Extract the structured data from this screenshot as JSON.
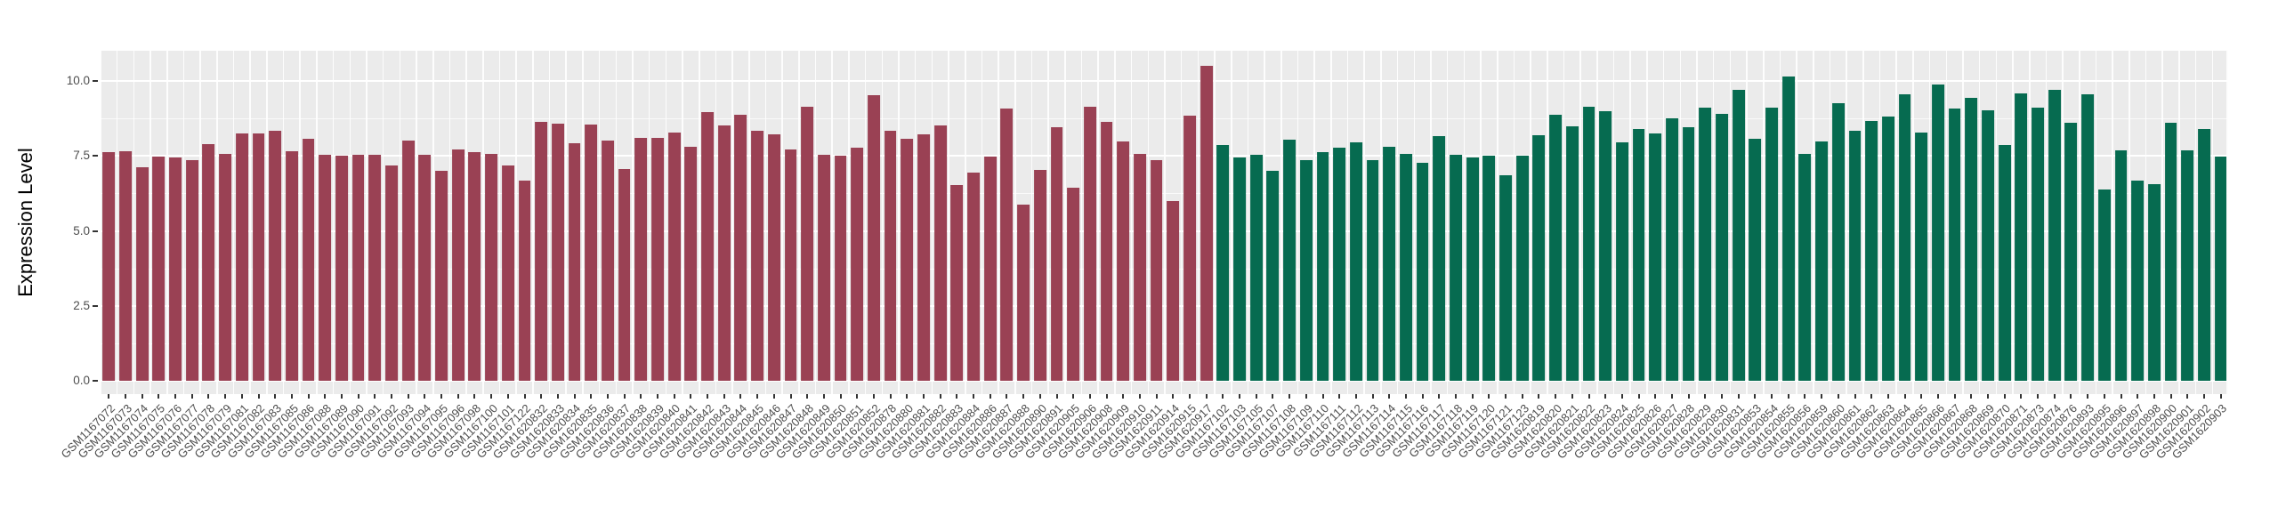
{
  "figure": {
    "background": "#FFFFFF",
    "panel_background": "#EBEBEB",
    "grid_color": "#FFFFFF",
    "axis_text_color": "#4D4D4D",
    "tick_mark_color": "#333333"
  },
  "chart_data": {
    "type": "bar",
    "title": "",
    "xlabel": "",
    "ylabel": "Expression Level",
    "ylim": [
      -0.45,
      11.0
    ],
    "y_ticks": [
      0.0,
      2.5,
      5.0,
      7.5,
      10.0
    ],
    "y_tick_labels": [
      "0.0",
      "2.5",
      "5.0",
      "7.5",
      "10.0"
    ],
    "x_tick_angle": 45,
    "grid": "white major and minor horizontal lines, white vertical lines between bars",
    "legend": "none",
    "groups": [
      {
        "name": "red-group",
        "color": "#9A4154",
        "labels": [
          "GSM1167072",
          "GSM1167073",
          "GSM1167074",
          "GSM1167075",
          "GSM1167076",
          "GSM1167077",
          "GSM1167078",
          "GSM1167079",
          "GSM1167081",
          "GSM1167082",
          "GSM1167083",
          "GSM1167085",
          "GSM1167086",
          "GSM1167088",
          "GSM1167089",
          "GSM1167090",
          "GSM1167091",
          "GSM1167092",
          "GSM1167093",
          "GSM1167094",
          "GSM1167095",
          "GSM1167096",
          "GSM1167098",
          "GSM1167100",
          "GSM1167101",
          "GSM1167122",
          "GSM1620832",
          "GSM1620833",
          "GSM1620834",
          "GSM1620835",
          "GSM1620836",
          "GSM1620837",
          "GSM1620838",
          "GSM1620839",
          "GSM1620840",
          "GSM1620841",
          "GSM1620842",
          "GSM1620843",
          "GSM1620844",
          "GSM1620845",
          "GSM1620846",
          "GSM1620847",
          "GSM1620848",
          "GSM1620849",
          "GSM1620850",
          "GSM1620851",
          "GSM1620852",
          "GSM1620878",
          "GSM1620880",
          "GSM1620881",
          "GSM1620882",
          "GSM1620883",
          "GSM1620884",
          "GSM1620886",
          "GSM1620887",
          "GSM1620888",
          "GSM1620890",
          "GSM1620891",
          "GSM1620905",
          "GSM1620906",
          "GSM1620908",
          "GSM1620909",
          "GSM1620910",
          "GSM1620911",
          "GSM1620914",
          "GSM1620915",
          "GSM1620917"
        ],
        "values": [
          7.61,
          7.66,
          7.13,
          7.47,
          7.45,
          7.35,
          7.88,
          7.58,
          8.26,
          8.24,
          8.33,
          7.64,
          8.06,
          7.53,
          7.51,
          7.53,
          7.53,
          7.19,
          8.0,
          7.55,
          6.99,
          7.72,
          7.63,
          7.56,
          7.17,
          6.67,
          8.64,
          8.58,
          7.91,
          8.53,
          8.02,
          7.06,
          8.09,
          8.11,
          8.27,
          7.8,
          8.97,
          8.5,
          8.86,
          8.34,
          8.23,
          7.72,
          9.13,
          7.53,
          7.51,
          7.77,
          9.52,
          8.34,
          8.08,
          8.23,
          8.5,
          6.52,
          6.94,
          7.48,
          9.07,
          5.87,
          7.03,
          8.46,
          6.44,
          9.13,
          8.62,
          7.99,
          7.58,
          7.35,
          5.99,
          8.85,
          10.5
        ]
      },
      {
        "name": "green-group",
        "color": "#066B50",
        "labels": [
          "GSM1167102",
          "GSM1167103",
          "GSM1167105",
          "GSM1167107",
          "GSM1167108",
          "GSM1167109",
          "GSM1167110",
          "GSM1167111",
          "GSM1167112",
          "GSM1167113",
          "GSM1167114",
          "GSM1167115",
          "GSM1167116",
          "GSM1167117",
          "GSM1167118",
          "GSM1167119",
          "GSM1167120",
          "GSM1167121",
          "GSM1167123",
          "GSM1620819",
          "GSM1620820",
          "GSM1620821",
          "GSM1620822",
          "GSM1620823",
          "GSM1620824",
          "GSM1620825",
          "GSM1620826",
          "GSM1620827",
          "GSM1620828",
          "GSM1620829",
          "GSM1620830",
          "GSM1620831",
          "GSM1620853",
          "GSM1620854",
          "GSM1620855",
          "GSM1620856",
          "GSM1620859",
          "GSM1620860",
          "GSM1620861",
          "GSM1620862",
          "GSM1620863",
          "GSM1620864",
          "GSM1620865",
          "GSM1620866",
          "GSM1620867",
          "GSM1620868",
          "GSM1620869",
          "GSM1620870",
          "GSM1620871",
          "GSM1620873",
          "GSM1620874",
          "GSM1620876",
          "GSM1620893",
          "GSM1620895",
          "GSM1620896",
          "GSM1620897",
          "GSM1620898",
          "GSM1620900",
          "GSM1620901",
          "GSM1620902",
          "GSM1620903"
        ],
        "values": [
          7.86,
          7.44,
          7.54,
          7.0,
          8.04,
          7.37,
          7.61,
          7.76,
          7.94,
          7.37,
          7.79,
          7.58,
          7.27,
          8.16,
          7.55,
          7.45,
          7.52,
          6.86,
          7.52,
          8.2,
          8.87,
          8.47,
          9.14,
          8.98,
          7.94,
          8.39,
          8.26,
          8.74,
          8.44,
          9.11,
          8.91,
          9.69,
          8.06,
          9.1,
          10.13,
          7.57,
          7.97,
          9.24,
          8.34,
          8.65,
          8.8,
          9.55,
          8.28,
          9.87,
          9.07,
          9.42,
          9.03,
          7.85,
          9.59,
          9.1,
          9.71,
          8.61,
          9.55,
          6.38,
          7.69,
          6.67,
          6.57,
          8.61,
          7.69,
          8.4,
          7.47
        ]
      }
    ]
  }
}
